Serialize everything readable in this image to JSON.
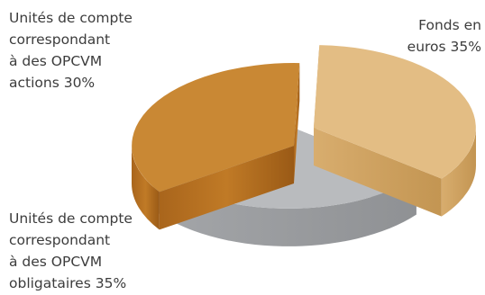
{
  "chart_data": {
    "type": "pie",
    "style": "3d-exploded",
    "slices": [
      {
        "label_lines": [
          "Fonds en",
          "euros 35%"
        ],
        "category": "Fonds en euros",
        "value": 35,
        "color": "#e3bd84"
      },
      {
        "label_lines": [
          "Unités de compte",
          "correspondant",
          "à des OPCVM",
          "actions 30%"
        ],
        "category": "Unités de compte correspondant à des OPCVM actions",
        "value": 30,
        "color": "#b9bbbe"
      },
      {
        "label_lines": [
          "Unités de compte",
          "correspondant",
          "à des OPCVM",
          "obligataires 35%"
        ],
        "category": "Unités de compte correspondant à des OPCVM obligataires",
        "value": 35,
        "color": "#c98834"
      }
    ],
    "title": "",
    "legend": "none"
  }
}
